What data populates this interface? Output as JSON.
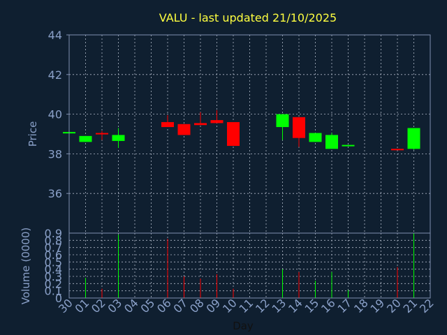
{
  "chart_data": {
    "type": "candlestick",
    "title": "VALU - last updated 21/10/2025",
    "xlabel": "Day",
    "price_ylabel": "Price",
    "volume_ylabel": "Volume (0000)",
    "price_ylim": [
      34,
      44
    ],
    "price_yticks": [
      "36",
      "38",
      "40",
      "42",
      "44"
    ],
    "volume_ylim": [
      0,
      0.9
    ],
    "volume_yticks": [
      "0",
      "0.1",
      "0.2",
      "0.3",
      "0.4",
      "0.5",
      "0.6",
      "0.7",
      "0.8",
      "0.9"
    ],
    "x_labels": [
      "30",
      "01",
      "02",
      "03",
      "04",
      "05",
      "06",
      "07",
      "08",
      "09",
      "10",
      "11",
      "12",
      "13",
      "14",
      "15",
      "16",
      "17",
      "18",
      "19",
      "20",
      "21",
      "22"
    ],
    "grid": true,
    "colors": {
      "background": "#0f1f30",
      "axis": "#7f8fb0",
      "label": "#8aa0c8",
      "title": "#ffff40",
      "up": "#00ff00",
      "down": "#ff0000"
    },
    "candles": [
      {
        "x": 0,
        "open": 39.1,
        "close": 39.1,
        "high": 39.1,
        "low": 39.1,
        "volume": 0.0
      },
      {
        "x": 1,
        "open": 38.6,
        "close": 38.9,
        "high": 38.9,
        "low": 38.6,
        "volume": 0.28
      },
      {
        "x": 2,
        "open": 39.05,
        "close": 39.0,
        "high": 39.15,
        "low": 38.7,
        "volume": 0.13
      },
      {
        "x": 3,
        "open": 38.65,
        "close": 38.95,
        "high": 39.3,
        "low": 38.3,
        "volume": 0.88
      },
      {
        "x": 6,
        "open": 39.6,
        "close": 39.35,
        "high": 39.95,
        "low": 39.35,
        "volume": 0.82
      },
      {
        "x": 7,
        "open": 39.5,
        "close": 38.95,
        "high": 39.5,
        "low": 38.95,
        "volume": 0.3
      },
      {
        "x": 8,
        "open": 39.55,
        "close": 39.45,
        "high": 40.1,
        "low": 39.45,
        "volume": 0.27
      },
      {
        "x": 9,
        "open": 39.7,
        "close": 39.55,
        "high": 40.2,
        "low": 39.55,
        "volume": 0.33
      },
      {
        "x": 10,
        "open": 39.6,
        "close": 38.4,
        "high": 39.6,
        "low": 38.4,
        "volume": 0.13
      },
      {
        "x": 13,
        "open": 39.35,
        "close": 40.0,
        "high": 40.0,
        "low": 38.7,
        "volume": 0.4
      },
      {
        "x": 14,
        "open": 39.85,
        "close": 38.8,
        "high": 39.85,
        "low": 38.35,
        "volume": 0.36
      },
      {
        "x": 15,
        "open": 38.6,
        "close": 39.05,
        "high": 39.05,
        "low": 38.6,
        "volume": 0.24
      },
      {
        "x": 16,
        "open": 38.25,
        "close": 38.95,
        "high": 39.05,
        "low": 38.25,
        "volume": 0.36
      },
      {
        "x": 17,
        "open": 38.4,
        "close": 38.45,
        "high": 38.45,
        "low": 38.4,
        "volume": 0.11
      },
      {
        "x": 20,
        "open": 38.25,
        "close": 38.2,
        "high": 38.25,
        "low": 38.2,
        "volume": 0.43
      },
      {
        "x": 21,
        "open": 38.25,
        "close": 39.3,
        "high": 39.3,
        "low": 38.2,
        "volume": 0.9
      }
    ]
  }
}
